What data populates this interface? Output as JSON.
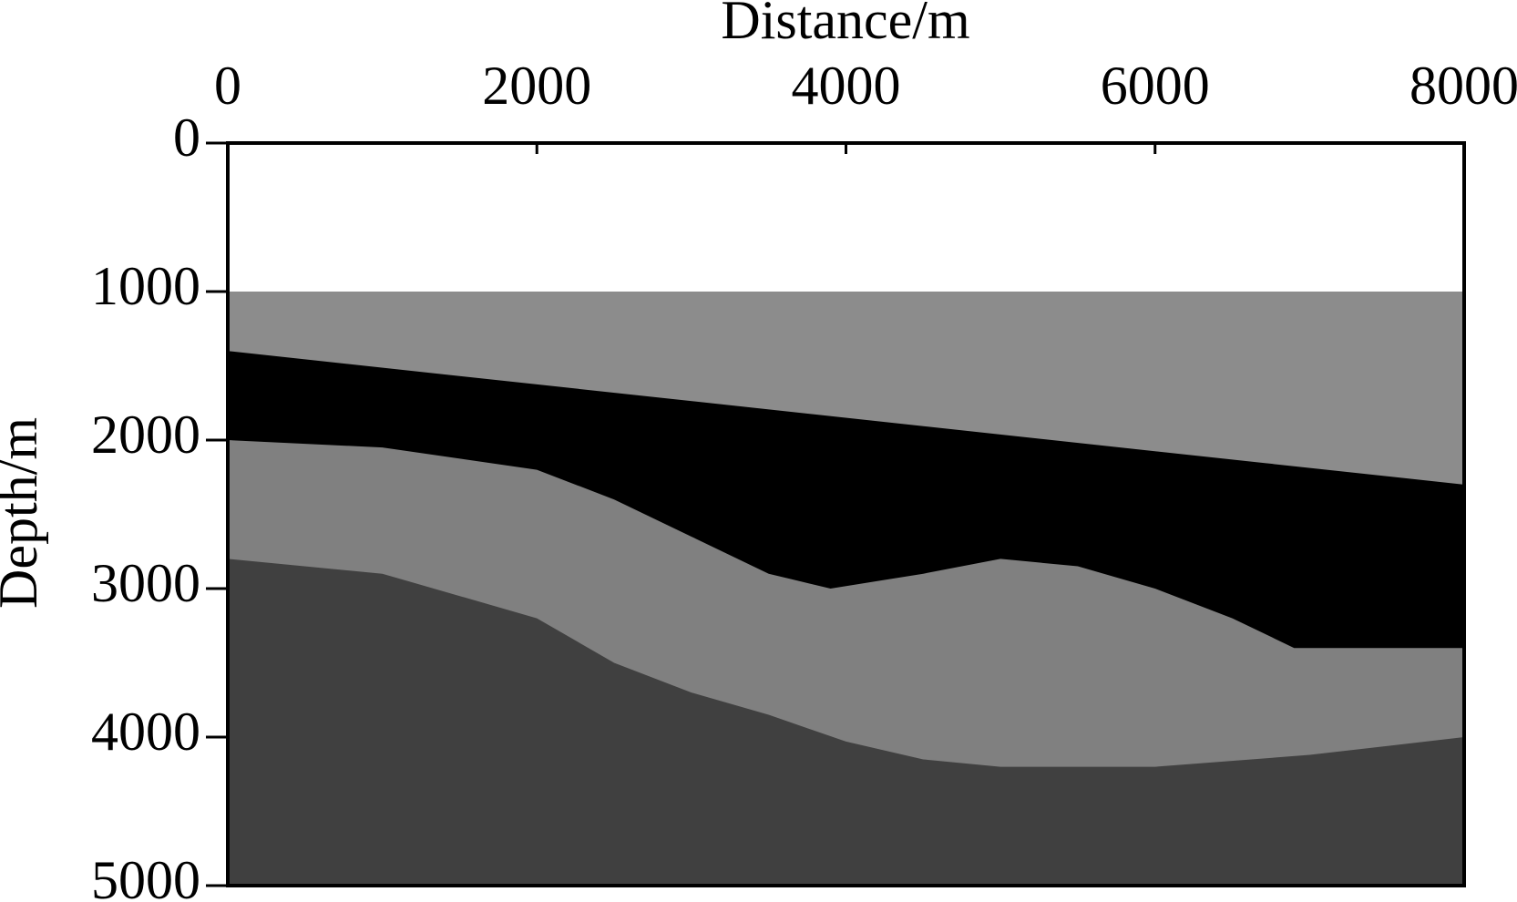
{
  "chart_data": {
    "type": "layered_model",
    "x_label": "Distance/m",
    "y_label": "Depth/m",
    "xlim": [
      0,
      8000
    ],
    "xticks": [
      0,
      2000,
      4000,
      6000,
      8000
    ],
    "ylim": [
      0,
      5000
    ],
    "yticks": [
      0,
      1000,
      2000,
      3000,
      4000,
      5000
    ],
    "invert_y": true,
    "x_axis_position": "top",
    "background": "#ffffff",
    "series": [
      {
        "color": "#8c8c8c",
        "x": [
          0,
          8000
        ],
        "values": [
          1000,
          1000
        ]
      },
      {
        "color": "#000000",
        "x": [
          0,
          8000
        ],
        "values": [
          1400,
          2300
        ]
      },
      {
        "color": "#808080",
        "x": [
          0,
          1000,
          2000,
          2500,
          3000,
          3500,
          3900,
          4500,
          5000,
          5500,
          6000,
          6500,
          6900,
          8000
        ],
        "values": [
          2000,
          2050,
          2200,
          2400,
          2650,
          2900,
          3000,
          2900,
          2800,
          2850,
          3000,
          3200,
          3400,
          3400
        ]
      },
      {
        "color": "#404040",
        "x": [
          0,
          1000,
          2000,
          2500,
          3000,
          3500,
          4000,
          4500,
          5000,
          6000,
          7000,
          8000
        ],
        "values": [
          2800,
          2900,
          3200,
          3500,
          3700,
          3850,
          4030,
          4150,
          4200,
          4200,
          4120,
          4000
        ]
      }
    ]
  }
}
